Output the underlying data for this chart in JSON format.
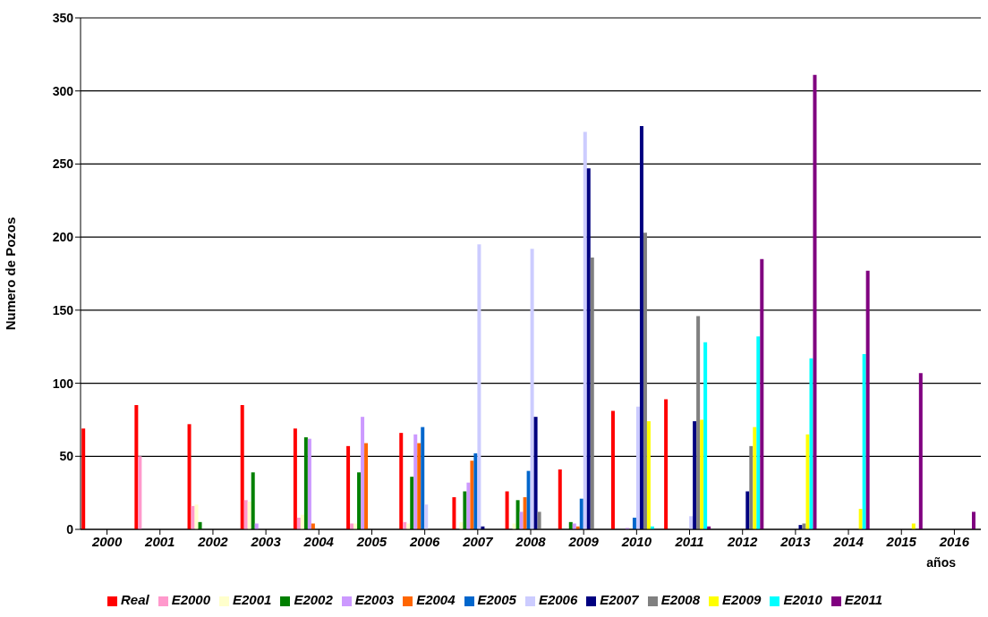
{
  "chart_data": {
    "type": "bar",
    "xlabel": "años",
    "ylabel": "Numero de Pozos",
    "categories": [
      "2000",
      "2001",
      "2002",
      "2003",
      "2004",
      "2005",
      "2006",
      "2007",
      "2008",
      "2009",
      "2010",
      "2011",
      "2012",
      "2013",
      "2014",
      "2015",
      "2016"
    ],
    "ylim": [
      0,
      350
    ],
    "yticks": [
      0,
      50,
      100,
      150,
      200,
      250,
      300,
      350
    ],
    "grid": "y",
    "legend": "bottom",
    "series": [
      {
        "name": "Real",
        "color": "#ff0000",
        "values": [
          69,
          85,
          72,
          85,
          69,
          57,
          66,
          22,
          26,
          41,
          81,
          89,
          null,
          null,
          null,
          null,
          null
        ]
      },
      {
        "name": "E2000",
        "color": "#ff99cc",
        "values": [
          null,
          50,
          16,
          20,
          8,
          4,
          5,
          null,
          null,
          null,
          null,
          null,
          null,
          null,
          null,
          null,
          null
        ]
      },
      {
        "name": "E2001",
        "color": "#ffffcc",
        "values": [
          null,
          null,
          17,
          19,
          10,
          4,
          4,
          5,
          4,
          null,
          null,
          null,
          null,
          null,
          null,
          null,
          null
        ]
      },
      {
        "name": "E2002",
        "color": "#008000",
        "values": [
          null,
          null,
          5,
          39,
          63,
          39,
          36,
          26,
          20,
          5,
          null,
          null,
          null,
          null,
          null,
          null,
          null
        ]
      },
      {
        "name": "E2003",
        "color": "#cc99ff",
        "values": [
          null,
          null,
          null,
          4,
          62,
          77,
          65,
          32,
          12,
          4,
          1,
          null,
          null,
          null,
          null,
          null,
          null
        ]
      },
      {
        "name": "E2004",
        "color": "#ff6600",
        "values": [
          null,
          null,
          null,
          null,
          4,
          59,
          59,
          47,
          22,
          2,
          null,
          null,
          null,
          null,
          null,
          null,
          null
        ]
      },
      {
        "name": "E2005",
        "color": "#0066cc",
        "values": [
          null,
          null,
          null,
          null,
          null,
          null,
          70,
          52,
          40,
          21,
          8,
          null,
          null,
          null,
          null,
          null,
          null
        ]
      },
      {
        "name": "E2006",
        "color": "#ccccff",
        "values": [
          null,
          null,
          null,
          null,
          null,
          null,
          17,
          195,
          192,
          272,
          84,
          9,
          null,
          null,
          null,
          null,
          null
        ]
      },
      {
        "name": "E2007",
        "color": "#000080",
        "values": [
          null,
          null,
          null,
          null,
          null,
          null,
          null,
          2,
          77,
          247,
          276,
          74,
          26,
          3,
          null,
          null,
          null
        ]
      },
      {
        "name": "E2008",
        "color": "#808080",
        "values": [
          null,
          null,
          null,
          null,
          null,
          null,
          null,
          null,
          12,
          186,
          203,
          146,
          57,
          4,
          null,
          null,
          null
        ]
      },
      {
        "name": "E2009",
        "color": "#ffff00",
        "values": [
          null,
          null,
          null,
          null,
          null,
          null,
          null,
          null,
          null,
          null,
          74,
          75,
          70,
          65,
          14,
          4,
          null
        ]
      },
      {
        "name": "E2010",
        "color": "#00ffff",
        "values": [
          null,
          null,
          null,
          null,
          null,
          null,
          null,
          null,
          null,
          null,
          2,
          128,
          132,
          117,
          120,
          null,
          null
        ]
      },
      {
        "name": "E2011",
        "color": "#800080",
        "values": [
          null,
          null,
          null,
          null,
          null,
          null,
          null,
          null,
          null,
          null,
          null,
          2,
          185,
          311,
          177,
          107,
          12
        ]
      }
    ]
  }
}
